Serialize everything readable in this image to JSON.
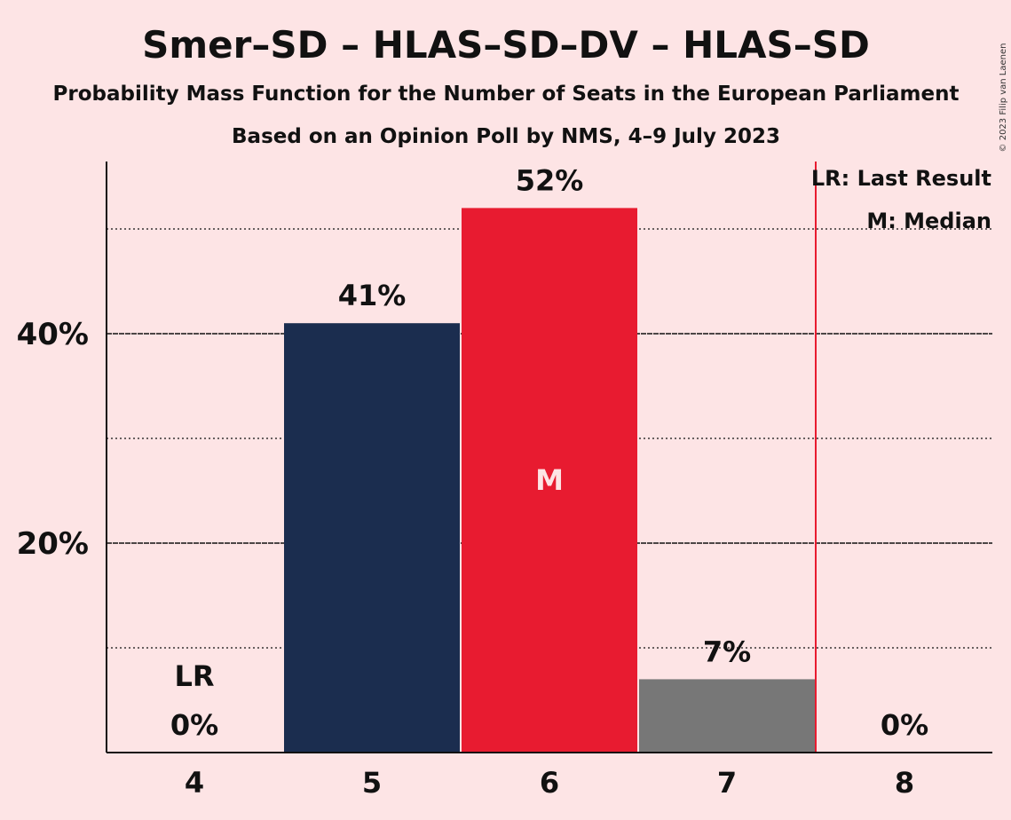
{
  "chart_data": {
    "type": "bar",
    "title": "Smer–SD – HLAS–SD–DV – HLAS–SD",
    "subtitle": "Probability Mass Function for the Number of Seats in the European Parliament",
    "subtitle2": "Based on an Opinion Poll by NMS, 4–9 July 2023",
    "copyright": "© 2023 Filip van Laenen",
    "categories": [
      "4",
      "5",
      "6",
      "7",
      "8"
    ],
    "values": [
      0,
      41,
      52,
      7,
      0
    ],
    "value_labels": [
      "0%",
      "41%",
      "52%",
      "7%",
      "0%"
    ],
    "bar_colors": [
      "#1B2D4F",
      "#1B2D4F",
      "#E81B30",
      "#777777",
      "#777777"
    ],
    "ylim": [
      0,
      56
    ],
    "yticks_major": [
      20,
      40
    ],
    "ytick_labels": [
      "20%",
      "40%"
    ],
    "yticks_minor": [
      10,
      30,
      50
    ],
    "last_result_category": "4",
    "last_result_line_after": "7",
    "median_category": "6",
    "lr_mark": "LR",
    "median_mark": "M",
    "legend": {
      "placement": "top-right",
      "lr": "LR: Last Result",
      "m": "M: Median"
    },
    "colors": {
      "background": "#FDE4E5",
      "navy": "#1B2D4F",
      "red": "#E81B30",
      "grey": "#777777",
      "lr_line": "#E81B30"
    }
  }
}
